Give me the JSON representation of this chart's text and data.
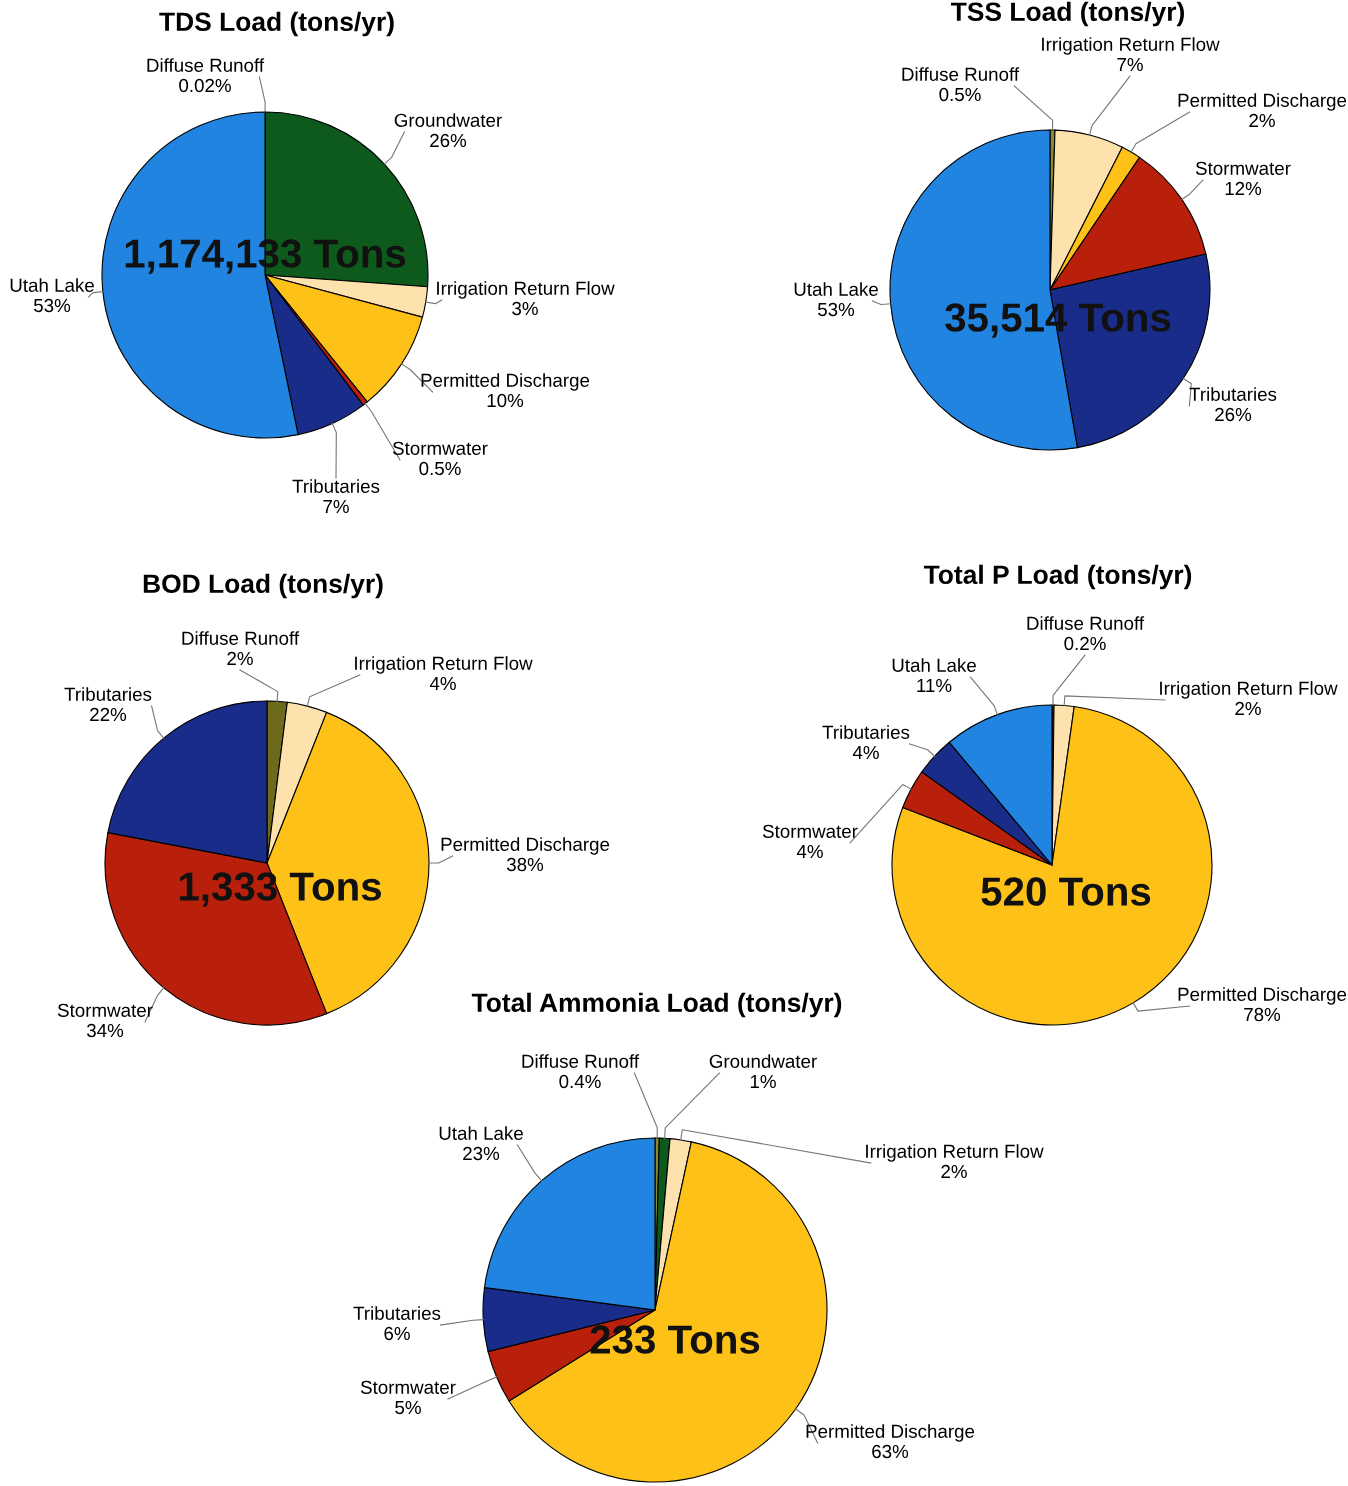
{
  "chart_data": [
    {
      "type": "pie",
      "title": "TDS Load (tons/yr)",
      "categories": [
        "Diffuse Runoff",
        "Groundwater",
        "Irrigation Return Flow",
        "Permitted Discharge",
        "Stormwater",
        "Tributaries",
        "Utah Lake"
      ],
      "values": [
        0.02,
        26,
        3,
        10,
        0.5,
        7,
        53
      ],
      "value_labels": [
        "0.02%",
        "26%",
        "3%",
        "10%",
        "0.5%",
        "7%",
        "53%"
      ],
      "colors": [
        "#8a8a2a",
        "#0e5a1c",
        "#fde2ae",
        "#fdc118",
        "#b8200c",
        "#1a2c8a",
        "#2184e0"
      ],
      "annotations": [
        "1,174,133 Tons"
      ]
    },
    {
      "type": "pie",
      "title": "TSS Load (tons/yr)",
      "categories": [
        "Diffuse Runoff",
        "Irrigation Return Flow",
        "Permitted Discharge",
        "Stormwater",
        "Tributaries",
        "Utah Lake"
      ],
      "values": [
        0.5,
        7,
        2,
        12,
        26,
        53
      ],
      "value_labels": [
        "0.5%",
        "7%",
        "2%",
        "12%",
        "26%",
        "53%"
      ],
      "colors": [
        "#8a8a2a",
        "#fde2ae",
        "#fdc118",
        "#b8200c",
        "#1a2c8a",
        "#2184e0"
      ],
      "annotations": [
        "35,514 Tons"
      ]
    },
    {
      "type": "pie",
      "title": "BOD Load (tons/yr)",
      "categories": [
        "Diffuse Runoff",
        "Irrigation Return Flow",
        "Permitted Discharge",
        "Stormwater",
        "Tributaries"
      ],
      "values": [
        2,
        4,
        38,
        34,
        22
      ],
      "value_labels": [
        "2%",
        "4%",
        "38%",
        "34%",
        "22%"
      ],
      "colors": [
        "#6e6a1c",
        "#fde2ae",
        "#fdc118",
        "#b8200c",
        "#1a2c8a"
      ],
      "annotations": [
        "1,333 Tons"
      ]
    },
    {
      "type": "pie",
      "title": "Total P Load (tons/yr)",
      "categories": [
        "Diffuse Runoff",
        "Irrigation Return Flow",
        "Permitted Discharge",
        "Stormwater",
        "Tributaries",
        "Utah Lake"
      ],
      "values": [
        0.2,
        2,
        78,
        4,
        4,
        11
      ],
      "value_labels": [
        "0.2%",
        "2%",
        "78%",
        "4%",
        "4%",
        "11%"
      ],
      "colors": [
        "#8e1a1a",
        "#fde2ae",
        "#fdc118",
        "#b8200c",
        "#1a2c8a",
        "#2184e0"
      ],
      "annotations": [
        "520 Tons"
      ]
    },
    {
      "type": "pie",
      "title": "Total Ammonia Load (tons/yr)",
      "categories": [
        "Diffuse Runoff",
        "Groundwater",
        "Irrigation Return Flow",
        "Permitted Discharge",
        "Stormwater",
        "Tributaries",
        "Utah Lake"
      ],
      "values": [
        0.4,
        1,
        2,
        63,
        5,
        6,
        23
      ],
      "value_labels": [
        "0.4%",
        "1%",
        "2%",
        "63%",
        "5%",
        "6%",
        "23%"
      ],
      "colors": [
        "#8a8a2a",
        "#0e5a1c",
        "#fde2ae",
        "#fdc118",
        "#b8200c",
        "#1a2c8a",
        "#2184e0"
      ],
      "annotations": [
        "233 Tons"
      ]
    }
  ]
}
